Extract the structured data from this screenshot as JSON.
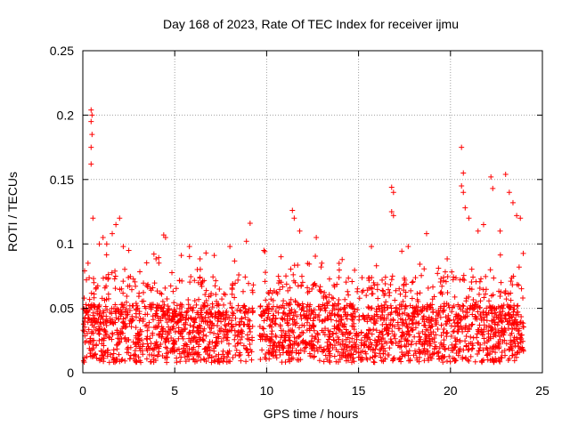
{
  "chart_data": {
    "type": "scatter",
    "title": "Day 168 of 2023, Rate Of TEC Index for receiver ijmu",
    "xlabel": "GPS time / hours",
    "ylabel": "ROTI / TECUs",
    "xlim": [
      0,
      25
    ],
    "ylim": [
      0,
      0.25
    ],
    "xticks": [
      0,
      5,
      10,
      15,
      20,
      25
    ],
    "yticks": [
      0,
      0.05,
      0.1,
      0.15,
      0.2,
      0.25
    ],
    "xtick_labels": [
      "0",
      "5",
      "10",
      "15",
      "20",
      "25"
    ],
    "ytick_labels": [
      "0",
      "0.05",
      "0.1",
      "0.15",
      "0.2",
      "0.25"
    ],
    "grid": true,
    "marker": "plus",
    "color": "#ff0000",
    "data_coverage": {
      "x_start": 0.0,
      "x_end": 24.0,
      "gap_start": 9.3,
      "gap_end": 9.6
    },
    "outliers": [
      {
        "x": 0.45,
        "y": 0.204
      },
      {
        "x": 0.5,
        "y": 0.2
      },
      {
        "x": 0.45,
        "y": 0.195
      },
      {
        "x": 0.5,
        "y": 0.185
      },
      {
        "x": 0.45,
        "y": 0.175
      },
      {
        "x": 0.45,
        "y": 0.162
      },
      {
        "x": 0.55,
        "y": 0.12
      },
      {
        "x": 0.9,
        "y": 0.1
      },
      {
        "x": 1.1,
        "y": 0.105
      },
      {
        "x": 1.3,
        "y": 0.1
      },
      {
        "x": 1.6,
        "y": 0.108
      },
      {
        "x": 1.8,
        "y": 0.115
      },
      {
        "x": 2.0,
        "y": 0.12
      },
      {
        "x": 2.2,
        "y": 0.098
      },
      {
        "x": 2.5,
        "y": 0.095
      },
      {
        "x": 4.4,
        "y": 0.107
      },
      {
        "x": 4.5,
        "y": 0.105
      },
      {
        "x": 5.8,
        "y": 0.098
      },
      {
        "x": 6.7,
        "y": 0.093
      },
      {
        "x": 8.0,
        "y": 0.098
      },
      {
        "x": 8.9,
        "y": 0.102
      },
      {
        "x": 9.1,
        "y": 0.116
      },
      {
        "x": 9.85,
        "y": 0.095
      },
      {
        "x": 9.9,
        "y": 0.094
      },
      {
        "x": 11.4,
        "y": 0.126
      },
      {
        "x": 11.5,
        "y": 0.12
      },
      {
        "x": 11.8,
        "y": 0.11
      },
      {
        "x": 12.7,
        "y": 0.105
      },
      {
        "x": 13.0,
        "y": 0.085
      },
      {
        "x": 16.8,
        "y": 0.144
      },
      {
        "x": 16.9,
        "y": 0.14
      },
      {
        "x": 16.8,
        "y": 0.125
      },
      {
        "x": 16.9,
        "y": 0.122
      },
      {
        "x": 15.7,
        "y": 0.098
      },
      {
        "x": 17.7,
        "y": 0.098
      },
      {
        "x": 18.7,
        "y": 0.108
      },
      {
        "x": 20.6,
        "y": 0.175
      },
      {
        "x": 20.7,
        "y": 0.155
      },
      {
        "x": 20.6,
        "y": 0.145
      },
      {
        "x": 20.7,
        "y": 0.14
      },
      {
        "x": 20.8,
        "y": 0.128
      },
      {
        "x": 21.0,
        "y": 0.12
      },
      {
        "x": 21.8,
        "y": 0.115
      },
      {
        "x": 22.2,
        "y": 0.152
      },
      {
        "x": 22.3,
        "y": 0.143
      },
      {
        "x": 23.0,
        "y": 0.154
      },
      {
        "x": 23.2,
        "y": 0.14
      },
      {
        "x": 23.4,
        "y": 0.132
      },
      {
        "x": 23.6,
        "y": 0.122
      },
      {
        "x": 23.8,
        "y": 0.12
      },
      {
        "x": 22.7,
        "y": 0.11
      },
      {
        "x": 21.5,
        "y": 0.11
      }
    ]
  }
}
